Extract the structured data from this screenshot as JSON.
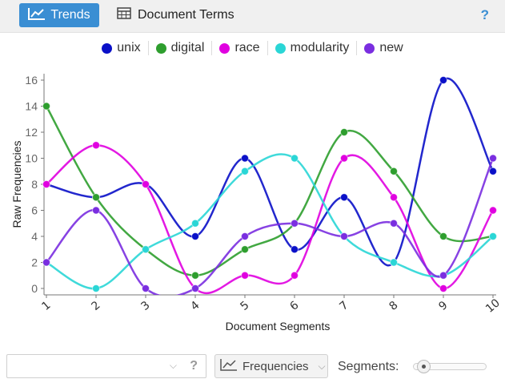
{
  "toolbar": {
    "trends_label": "Trends",
    "document_terms_label": "Document Terms",
    "help_label": "?"
  },
  "legend": {
    "items": [
      {
        "label": "unix",
        "color": "#0a10c8"
      },
      {
        "label": "digital",
        "color": "#2e9e2e"
      },
      {
        "label": "race",
        "color": "#e000e0"
      },
      {
        "label": "modularity",
        "color": "#2ad6d6"
      },
      {
        "label": "new",
        "color": "#7a2ee0"
      }
    ]
  },
  "chart_data": {
    "type": "line",
    "xlabel": "Document Segments",
    "ylabel": "Raw Frequencies",
    "x": [
      1,
      2,
      3,
      4,
      5,
      6,
      7,
      8,
      9,
      10
    ],
    "ylim": [
      0,
      16
    ],
    "yticks": [
      0,
      2,
      4,
      6,
      8,
      10,
      12,
      14,
      16
    ],
    "series": [
      {
        "name": "unix",
        "color": "#0a10c8",
        "values": [
          8,
          7,
          8,
          4,
          10,
          3,
          7,
          2,
          16,
          9
        ]
      },
      {
        "name": "digital",
        "color": "#2e9e2e",
        "values": [
          14,
          7,
          3,
          1,
          3,
          5,
          12,
          9,
          4,
          4
        ]
      },
      {
        "name": "race",
        "color": "#e000e0",
        "values": [
          8,
          11,
          8,
          0,
          1,
          1,
          10,
          7,
          0,
          6
        ]
      },
      {
        "name": "modularity",
        "color": "#2ad6d6",
        "values": [
          2,
          0,
          3,
          5,
          9,
          10,
          4,
          2,
          1,
          4
        ]
      },
      {
        "name": "new",
        "color": "#7a2ee0",
        "values": [
          2,
          6,
          0,
          0,
          4,
          5,
          4,
          5,
          1,
          10
        ]
      }
    ]
  },
  "bottom": {
    "search_help": "?",
    "frequencies_label": "Frequencies",
    "segments_label": "Segments:"
  }
}
